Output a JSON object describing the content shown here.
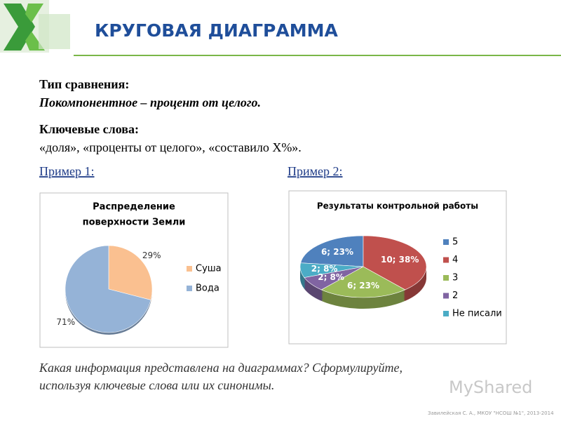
{
  "header": {
    "title": "КРУГОВАЯ ДИАГРАММА"
  },
  "text": {
    "comparison_label": "Тип сравнения:",
    "comparison_text": "Покомпонентное – процент от целого.",
    "keywords_label": "Ключевые слова:",
    "keywords_text": "«доля», «проценты от целого», «составило Х%».",
    "example1": "Пример 1:",
    "example2": "Пример 2:",
    "question": [
      "Какая информация представлена на диаграммах? Сформулируйте,",
      "используя ключевые слова или их синонимы."
    ],
    "watermark": "MyShared",
    "footer": "Завилейская С. А., МКОУ \"НСОШ №1\", 2013-2014"
  },
  "chart_data": [
    {
      "type": "pie",
      "title": [
        "Распределение",
        "поверхности Земли"
      ],
      "categories": [
        "Суша",
        "Вода"
      ],
      "values": [
        29,
        71
      ],
      "value_labels": [
        "29%",
        "71%"
      ],
      "colors": [
        "#fac090",
        "#95b3d7"
      ]
    },
    {
      "type": "pie3d",
      "title": [
        "Результаты контрольной работы"
      ],
      "categories": [
        "5",
        "4",
        "3",
        "2",
        "Не писали"
      ],
      "values": [
        6,
        10,
        6,
        2,
        2
      ],
      "value_labels": [
        "6; 23%",
        "10; 38%",
        "6; 23%",
        "2; 8%",
        "2; 8%"
      ],
      "colors": [
        "#4f81bd",
        "#c0504d",
        "#9bbb59",
        "#8064a2",
        "#4bacc6"
      ]
    }
  ]
}
